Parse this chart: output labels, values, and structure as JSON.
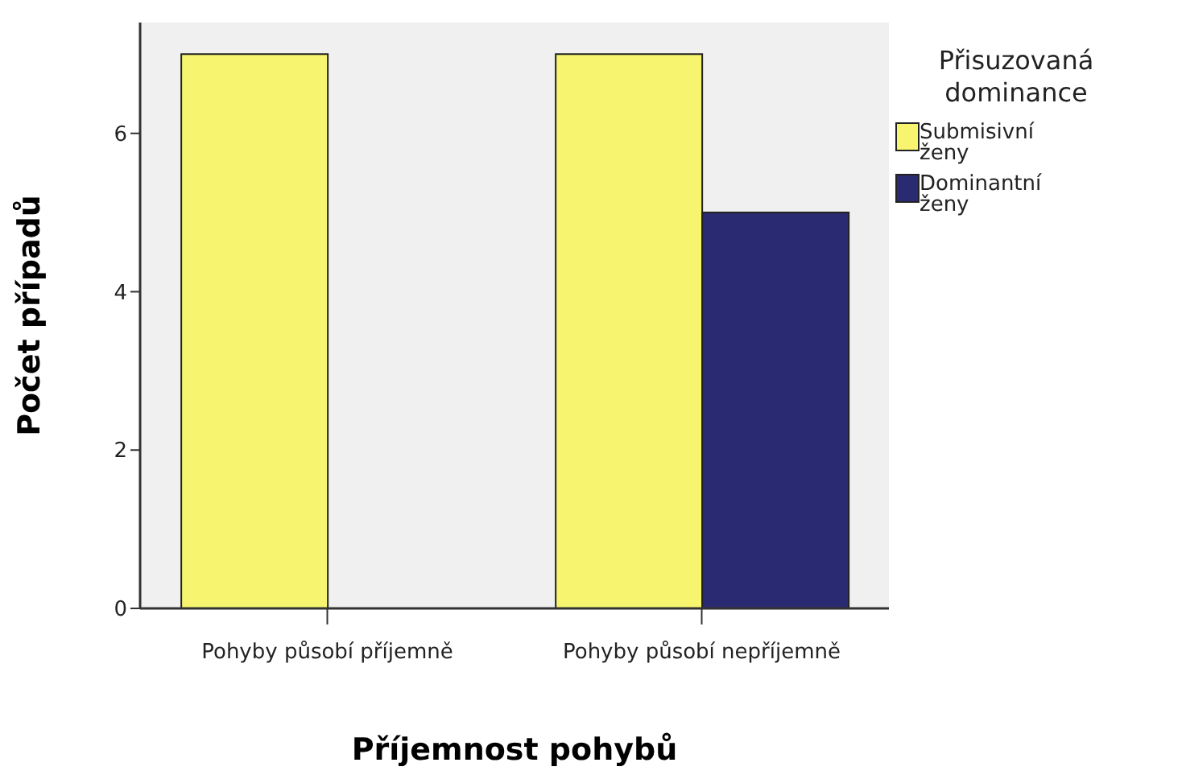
{
  "chart_data": {
    "type": "bar",
    "xlabel": "Příjemnost pohybů",
    "ylabel": "Počet případů",
    "legend_title": "Přisuzovaná dominance",
    "categories": [
      "Pohyby působí příjemně",
      "Pohyby působí nepříjemně"
    ],
    "series": [
      {
        "name": "Submisivní ženy",
        "color": "#f7f46f",
        "values": [
          7,
          7
        ]
      },
      {
        "name": "Dominantní ženy",
        "color": "#2a2a72",
        "values": [
          null,
          5
        ]
      }
    ],
    "ylim": [
      0,
      7.4
    ],
    "yticks": [
      0,
      2,
      4,
      6
    ],
    "grid": false,
    "legend": "right"
  }
}
